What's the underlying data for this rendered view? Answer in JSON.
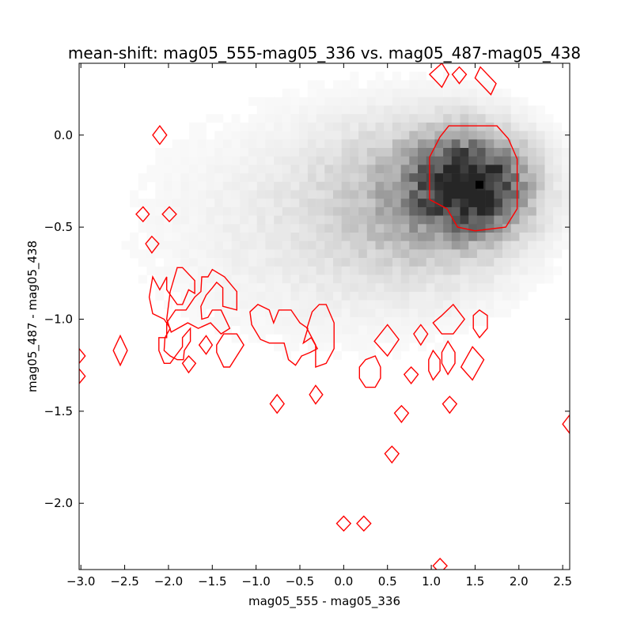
{
  "chart_data": {
    "type": "heatmap",
    "title": "mean-shift: mag05_555-mag05_336 vs. mag05_487-mag05_438",
    "xlabel": "mag05_555 - mag05_336",
    "ylabel": "mag05_487 - mag05_438",
    "xlim": [
      -3.02,
      2.58
    ],
    "ylim": [
      -2.36,
      0.39
    ],
    "x_ticks": [
      -3.0,
      -2.5,
      -2.0,
      -1.5,
      -1.0,
      -0.5,
      0.0,
      0.5,
      1.0,
      1.5,
      2.0,
      2.5
    ],
    "x_tick_labels": [
      "−3.0",
      "−2.5",
      "−2.0",
      "−1.5",
      "−1.0",
      "−0.5",
      "0.0",
      "0.5",
      "1.0",
      "1.5",
      "2.0",
      "2.5"
    ],
    "y_ticks": [
      0.0,
      -0.5,
      -1.0,
      -1.5,
      -2.0
    ],
    "y_tick_labels": [
      "0.0",
      "−0.5",
      "−1.0",
      "−1.5",
      "−2.0"
    ],
    "grid": false,
    "colormap": "Greys",
    "contour_color": "#ff0000",
    "density_peak": {
      "x": 1.55,
      "y": -0.27
    },
    "density_blobs": [
      {
        "x": 1.45,
        "y": -0.27,
        "sx": 0.42,
        "sy": 0.17,
        "w": 1.0
      },
      {
        "x": 0.9,
        "y": -0.35,
        "sx": 0.75,
        "sy": 0.28,
        "w": 0.32
      },
      {
        "x": -0.3,
        "y": -0.5,
        "sx": 1.3,
        "sy": 0.42,
        "w": 0.09
      }
    ],
    "contours": [
      {
        "name": "main-cluster",
        "points": [
          [
            0.98,
            -0.12
          ],
          [
            1.1,
            -0.01
          ],
          [
            1.2,
            0.05
          ],
          [
            1.75,
            0.05
          ],
          [
            1.88,
            -0.02
          ],
          [
            1.98,
            -0.13
          ],
          [
            1.98,
            -0.4
          ],
          [
            1.85,
            -0.5
          ],
          [
            1.5,
            -0.52
          ],
          [
            1.3,
            -0.5
          ],
          [
            1.18,
            -0.4
          ],
          [
            0.98,
            -0.35
          ]
        ]
      },
      {
        "name": "upper-1",
        "points": [
          [
            1.12,
            0.39
          ],
          [
            1.2,
            0.33
          ],
          [
            1.12,
            0.26
          ],
          [
            0.98,
            0.33
          ]
        ]
      },
      {
        "name": "upper-2",
        "points": [
          [
            1.32,
            0.37
          ],
          [
            1.4,
            0.33
          ],
          [
            1.32,
            0.28
          ],
          [
            1.24,
            0.33
          ]
        ]
      },
      {
        "name": "upper-3",
        "points": [
          [
            1.56,
            0.37
          ],
          [
            1.74,
            0.28
          ],
          [
            1.68,
            0.22
          ],
          [
            1.5,
            0.31
          ]
        ]
      },
      {
        "name": "left-0",
        "points": [
          [
            -2.1,
            0.05
          ],
          [
            -2.02,
            0.0
          ],
          [
            -2.1,
            -0.05
          ],
          [
            -2.18,
            0.0
          ]
        ]
      },
      {
        "name": "left-1",
        "points": [
          [
            -2.29,
            -0.39
          ],
          [
            -2.22,
            -0.43
          ],
          [
            -2.29,
            -0.47
          ],
          [
            -2.37,
            -0.43
          ]
        ]
      },
      {
        "name": "left-2",
        "points": [
          [
            -1.99,
            -0.39
          ],
          [
            -1.91,
            -0.43
          ],
          [
            -1.99,
            -0.47
          ],
          [
            -2.07,
            -0.43
          ]
        ]
      },
      {
        "name": "left-3",
        "points": [
          [
            -2.19,
            -0.55
          ],
          [
            -2.11,
            -0.59
          ],
          [
            -2.19,
            -0.64
          ],
          [
            -2.26,
            -0.59
          ]
        ]
      },
      {
        "name": "left-4",
        "points": [
          [
            -2.18,
            -0.77
          ],
          [
            -2.1,
            -0.84
          ],
          [
            -2.02,
            -0.77
          ],
          [
            -2.02,
            -0.84
          ],
          [
            -1.9,
            -0.92
          ],
          [
            -1.84,
            -0.92
          ],
          [
            -1.77,
            -0.84
          ],
          [
            -1.7,
            -0.86
          ],
          [
            -1.7,
            -0.79
          ],
          [
            -1.84,
            -0.72
          ],
          [
            -1.9,
            -0.72
          ],
          [
            -1.98,
            -0.85
          ],
          [
            -2.02,
            -1.0
          ],
          [
            -1.97,
            -1.07
          ],
          [
            -1.78,
            -1.02
          ],
          [
            -1.66,
            -1.05
          ],
          [
            -1.52,
            -1.02
          ],
          [
            -1.4,
            -1.08
          ],
          [
            -1.3,
            -1.05
          ],
          [
            -1.4,
            -0.95
          ],
          [
            -1.5,
            -0.95
          ],
          [
            -1.55,
            -0.99
          ],
          [
            -1.62,
            -1.0
          ],
          [
            -1.63,
            -0.93
          ],
          [
            -1.57,
            -0.87
          ],
          [
            -1.5,
            -0.83
          ],
          [
            -1.45,
            -0.8
          ],
          [
            -1.38,
            -0.83
          ],
          [
            -1.38,
            -0.93
          ],
          [
            -1.22,
            -0.95
          ],
          [
            -1.22,
            -0.85
          ],
          [
            -1.36,
            -0.77
          ],
          [
            -1.5,
            -0.73
          ],
          [
            -1.55,
            -0.77
          ],
          [
            -1.62,
            -0.77
          ],
          [
            -1.63,
            -0.85
          ],
          [
            -1.7,
            -0.88
          ],
          [
            -1.8,
            -0.95
          ],
          [
            -1.92,
            -0.95
          ],
          [
            -2.02,
            -1.02
          ],
          [
            -2.02,
            -1.1
          ],
          [
            -2.11,
            -1.1
          ],
          [
            -2.11,
            -1.17
          ],
          [
            -2.05,
            -1.24
          ],
          [
            -1.98,
            -1.24
          ],
          [
            -1.92,
            -1.2
          ],
          [
            -1.84,
            -1.15
          ],
          [
            -1.84,
            -1.1
          ],
          [
            -1.75,
            -1.05
          ],
          [
            -1.75,
            -1.12
          ],
          [
            -1.82,
            -1.17
          ],
          [
            -1.83,
            -1.22
          ],
          [
            -1.9,
            -1.22
          ],
          [
            -1.98,
            -1.2
          ],
          [
            -2.05,
            -1.17
          ],
          [
            -2.04,
            -1.1
          ],
          [
            -1.98,
            -1.05
          ],
          [
            -2.05,
            -1.0
          ],
          [
            -2.18,
            -0.97
          ],
          [
            -2.22,
            -0.88
          ]
        ]
      },
      {
        "name": "left-5",
        "points": [
          [
            -1.57,
            -1.09
          ],
          [
            -1.5,
            -1.14
          ],
          [
            -1.57,
            -1.19
          ],
          [
            -1.65,
            -1.14
          ]
        ]
      },
      {
        "name": "left-6",
        "points": [
          [
            -1.45,
            -1.14
          ],
          [
            -1.37,
            -1.08
          ],
          [
            -1.22,
            -1.08
          ],
          [
            -1.14,
            -1.14
          ],
          [
            -1.3,
            -1.26
          ],
          [
            -1.37,
            -1.26
          ],
          [
            -1.45,
            -1.18
          ]
        ]
      },
      {
        "name": "left-7",
        "points": [
          [
            -2.55,
            -1.09
          ],
          [
            -2.47,
            -1.17
          ],
          [
            -2.55,
            -1.25
          ],
          [
            -2.63,
            -1.17
          ]
        ]
      },
      {
        "name": "left-8",
        "points": [
          [
            -1.77,
            -1.2
          ],
          [
            -1.69,
            -1.24
          ],
          [
            -1.77,
            -1.29
          ],
          [
            -1.84,
            -1.24
          ]
        ]
      },
      {
        "name": "left-edge-1",
        "points": [
          [
            -3.02,
            -1.16
          ],
          [
            -2.95,
            -1.2
          ],
          [
            -3.02,
            -1.24
          ]
        ]
      },
      {
        "name": "left-edge-2",
        "points": [
          [
            -3.02,
            -1.27
          ],
          [
            -2.95,
            -1.31
          ],
          [
            -3.02,
            -1.35
          ]
        ]
      },
      {
        "name": "mid-1",
        "points": [
          [
            -1.07,
            -0.96
          ],
          [
            -0.98,
            -0.92
          ],
          [
            -0.85,
            -0.95
          ],
          [
            -0.8,
            -1.02
          ],
          [
            -0.74,
            -0.95
          ],
          [
            -0.6,
            -0.95
          ],
          [
            -0.5,
            -1.02
          ],
          [
            -0.41,
            -1.05
          ],
          [
            -0.46,
            -1.13
          ],
          [
            -0.37,
            -1.1
          ],
          [
            -0.3,
            -1.16
          ],
          [
            -0.38,
            -1.18
          ],
          [
            -0.48,
            -1.2
          ],
          [
            -0.55,
            -1.25
          ],
          [
            -0.63,
            -1.22
          ],
          [
            -0.68,
            -1.13
          ],
          [
            -0.85,
            -1.13
          ],
          [
            -0.95,
            -1.11
          ],
          [
            -1.05,
            -1.03
          ]
        ]
      },
      {
        "name": "mid-2",
        "points": [
          [
            -0.36,
            -0.96
          ],
          [
            -0.28,
            -0.92
          ],
          [
            -0.2,
            -0.92
          ],
          [
            -0.11,
            -1.02
          ],
          [
            -0.11,
            -1.16
          ],
          [
            -0.2,
            -1.24
          ],
          [
            -0.32,
            -1.26
          ],
          [
            -0.32,
            -1.14
          ],
          [
            -0.42,
            -1.05
          ]
        ]
      },
      {
        "name": "mid-3",
        "points": [
          [
            -0.76,
            -1.41
          ],
          [
            -0.68,
            -1.46
          ],
          [
            -0.76,
            -1.51
          ],
          [
            -0.84,
            -1.46
          ]
        ]
      },
      {
        "name": "mid-4",
        "points": [
          [
            -0.32,
            -1.36
          ],
          [
            -0.24,
            -1.41
          ],
          [
            -0.32,
            -1.46
          ],
          [
            -0.39,
            -1.41
          ]
        ]
      },
      {
        "name": "right-1",
        "points": [
          [
            0.35,
            -1.12
          ],
          [
            0.5,
            -1.03
          ],
          [
            0.63,
            -1.11
          ],
          [
            0.5,
            -1.2
          ]
        ]
      },
      {
        "name": "right-2",
        "points": [
          [
            0.88,
            -1.03
          ],
          [
            0.96,
            -1.08
          ],
          [
            0.88,
            -1.14
          ],
          [
            0.8,
            -1.08
          ]
        ]
      },
      {
        "name": "right-3",
        "points": [
          [
            1.12,
            -0.98
          ],
          [
            1.25,
            -0.92
          ],
          [
            1.38,
            -1.0
          ],
          [
            1.25,
            -1.08
          ],
          [
            1.12,
            -1.08
          ],
          [
            1.02,
            -1.02
          ]
        ]
      },
      {
        "name": "right-4",
        "points": [
          [
            1.55,
            -0.95
          ],
          [
            1.64,
            -0.98
          ],
          [
            1.64,
            -1.05
          ],
          [
            1.55,
            -1.1
          ],
          [
            1.48,
            -1.05
          ],
          [
            1.48,
            -0.98
          ]
        ]
      },
      {
        "name": "right-5",
        "points": [
          [
            0.25,
            -1.22
          ],
          [
            0.36,
            -1.2
          ],
          [
            0.42,
            -1.26
          ],
          [
            0.42,
            -1.32
          ],
          [
            0.36,
            -1.37
          ],
          [
            0.25,
            -1.37
          ],
          [
            0.18,
            -1.32
          ],
          [
            0.18,
            -1.26
          ]
        ]
      },
      {
        "name": "right-6",
        "points": [
          [
            1.02,
            -1.17
          ],
          [
            1.1,
            -1.22
          ],
          [
            1.1,
            -1.28
          ],
          [
            1.02,
            -1.33
          ],
          [
            0.97,
            -1.28
          ],
          [
            0.97,
            -1.22
          ]
        ]
      },
      {
        "name": "right-7",
        "points": [
          [
            1.19,
            -1.12
          ],
          [
            1.27,
            -1.18
          ],
          [
            1.27,
            -1.24
          ],
          [
            1.19,
            -1.3
          ],
          [
            1.12,
            -1.24
          ],
          [
            1.12,
            -1.18
          ]
        ]
      },
      {
        "name": "right-8",
        "points": [
          [
            1.47,
            -1.15
          ],
          [
            1.6,
            -1.22
          ],
          [
            1.47,
            -1.33
          ],
          [
            1.34,
            -1.26
          ]
        ]
      },
      {
        "name": "right-9",
        "points": [
          [
            0.77,
            -1.26
          ],
          [
            0.85,
            -1.3
          ],
          [
            0.77,
            -1.35
          ],
          [
            0.69,
            -1.3
          ]
        ]
      },
      {
        "name": "right-10",
        "points": [
          [
            0.66,
            -1.47
          ],
          [
            0.74,
            -1.51
          ],
          [
            0.66,
            -1.56
          ],
          [
            0.58,
            -1.51
          ]
        ]
      },
      {
        "name": "right-11",
        "points": [
          [
            1.21,
            -1.42
          ],
          [
            1.29,
            -1.46
          ],
          [
            1.21,
            -1.51
          ],
          [
            1.13,
            -1.46
          ]
        ]
      },
      {
        "name": "right-12",
        "points": [
          [
            0.55,
            -1.69
          ],
          [
            0.63,
            -1.73
          ],
          [
            0.55,
            -1.78
          ],
          [
            0.47,
            -1.73
          ]
        ]
      },
      {
        "name": "right-edge",
        "points": [
          [
            2.58,
            -1.52
          ],
          [
            2.5,
            -1.57
          ],
          [
            2.58,
            -1.62
          ]
        ]
      },
      {
        "name": "bottom-1",
        "points": [
          [
            0.0,
            -2.07
          ],
          [
            0.08,
            -2.11
          ],
          [
            0.0,
            -2.15
          ],
          [
            -0.08,
            -2.11
          ]
        ]
      },
      {
        "name": "bottom-2",
        "points": [
          [
            0.23,
            -2.07
          ],
          [
            0.31,
            -2.11
          ],
          [
            0.23,
            -2.15
          ],
          [
            0.15,
            -2.11
          ]
        ]
      },
      {
        "name": "bottom-3",
        "points": [
          [
            1.1,
            -2.3
          ],
          [
            1.18,
            -2.34
          ],
          [
            1.1,
            -2.38
          ],
          [
            1.02,
            -2.34
          ]
        ]
      }
    ]
  }
}
